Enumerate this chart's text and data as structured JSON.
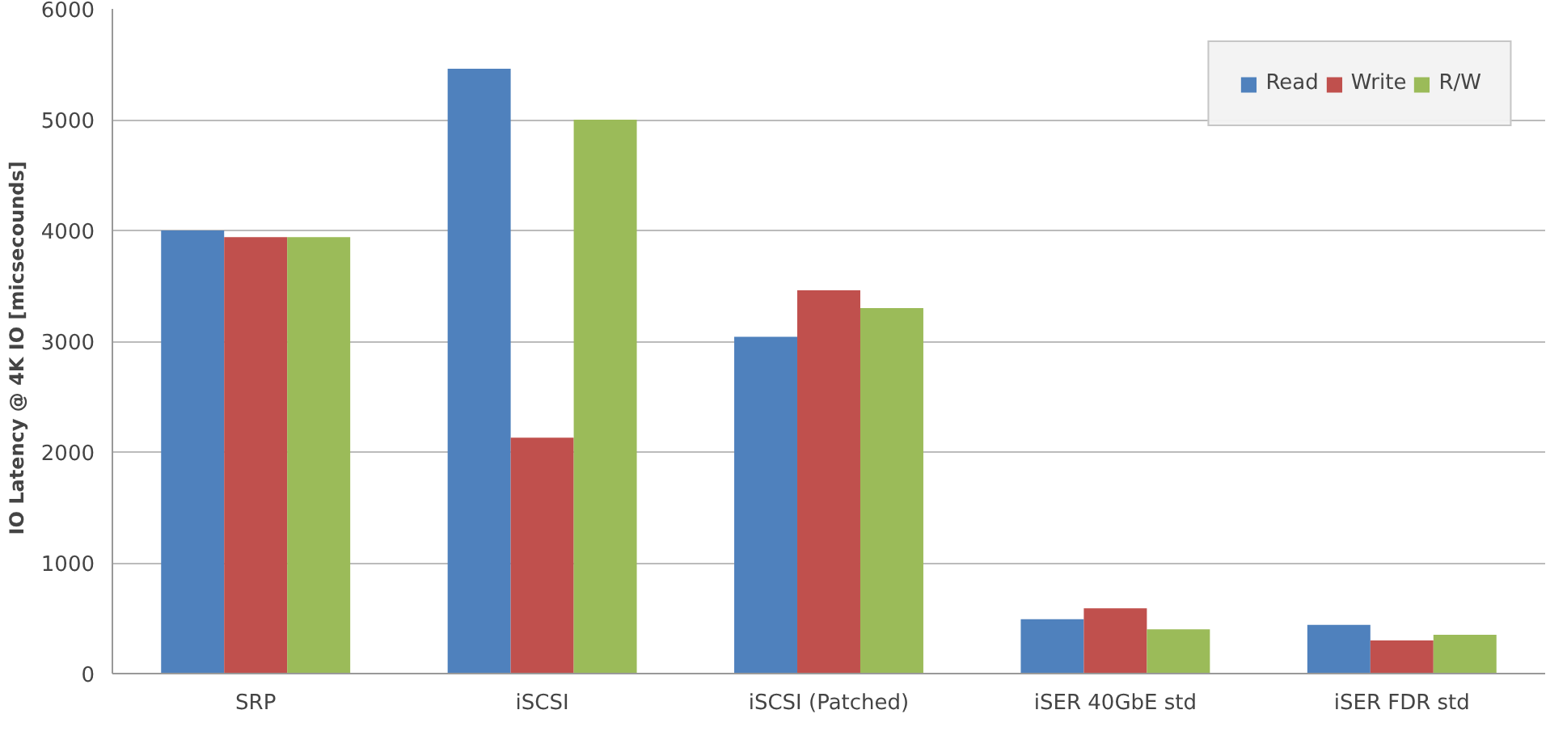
{
  "chart_data": {
    "type": "bar",
    "ylabel": "IO Latency @ 4K IO   [micsecounds]",
    "categories": [
      "SRP",
      "iSCSI",
      "iSCSI (Patched)",
      "iSER 40GbE std",
      "iSER FDR std"
    ],
    "series": [
      {
        "name": "Read",
        "color": "#4f81bd",
        "values": [
          4000,
          5460,
          3040,
          490,
          440
        ]
      },
      {
        "name": "Write",
        "color": "#c0504d",
        "values": [
          3940,
          2130,
          3460,
          590,
          300
        ]
      },
      {
        "name": "R/W",
        "color": "#9bbb59",
        "values": [
          3940,
          5000,
          3300,
          400,
          350
        ]
      }
    ],
    "ylim": [
      0,
      6000
    ],
    "yticks": [
      0,
      1000,
      2000,
      3000,
      4000,
      5000,
      6000
    ],
    "grid": "y",
    "legend": "top right"
  }
}
